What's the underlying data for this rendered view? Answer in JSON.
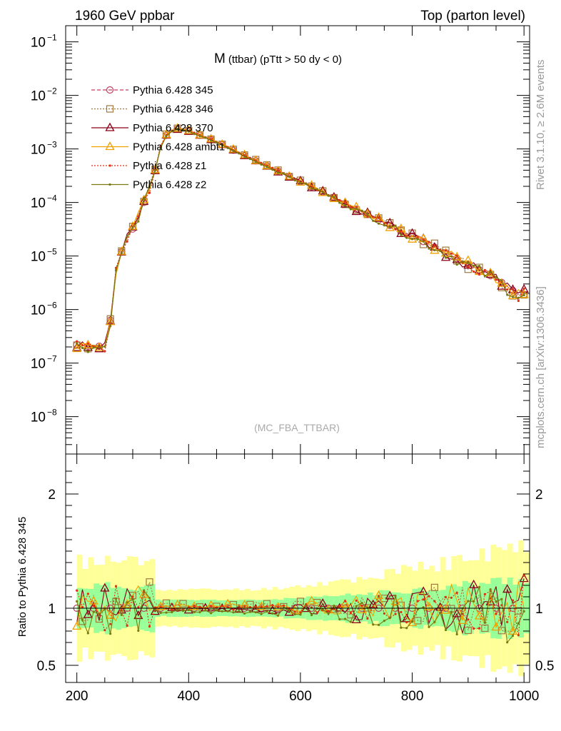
{
  "header": {
    "left_label": "1960 GeV ppbar",
    "right_label": "Top (parton level)",
    "side_top": "Rivet 3.1.10, ≥ 2.6M events",
    "side_bottom": "mcplots.cern.ch [arXiv:1306.3436]"
  },
  "chart_data": [
    {
      "type": "line",
      "title_main": "M",
      "title_sub": "(ttbar) (pTtt > 50 dy < 0)",
      "watermark": "(MC_FBA_TTBAR)",
      "yscale": "log",
      "xlim": [
        180,
        1010
      ],
      "ylim": [
        2e-09,
        0.2
      ],
      "y_ticks": [
        {
          "v": 1e-08,
          "base": "10",
          "exp": "−8"
        },
        {
          "v": 1e-07,
          "base": "10",
          "exp": "−7"
        },
        {
          "v": 1e-06,
          "base": "10",
          "exp": "−6"
        },
        {
          "v": 1e-05,
          "base": "10",
          "exp": "−5"
        },
        {
          "v": 0.0001,
          "base": "10",
          "exp": "−4"
        },
        {
          "v": 0.001,
          "base": "10",
          "exp": "−3"
        },
        {
          "v": 0.01,
          "base": "10",
          "exp": "−2"
        },
        {
          "v": 0.1,
          "base": "10",
          "exp": "−1"
        }
      ],
      "shape": {
        "points": [
          [
            200,
            2.2e-07
          ],
          [
            215,
            2.1e-07
          ],
          [
            230,
            2e-07
          ],
          [
            245,
            2.1e-07
          ],
          [
            255,
            2e-07
          ],
          [
            262,
            1e-06
          ],
          [
            270,
            5e-06
          ],
          [
            280,
            1.2e-05
          ],
          [
            290,
            2.2e-05
          ],
          [
            300,
            3.2e-05
          ],
          [
            310,
            5.5e-05
          ],
          [
            320,
            0.0001
          ],
          [
            330,
            0.00018
          ],
          [
            340,
            0.0004
          ],
          [
            350,
            0.0011
          ],
          [
            360,
            0.0018
          ],
          [
            370,
            0.0022
          ],
          [
            380,
            0.00235
          ],
          [
            390,
            0.0023
          ],
          [
            400,
            0.00215
          ],
          [
            420,
            0.0018
          ],
          [
            440,
            0.0015
          ],
          [
            460,
            0.0012
          ],
          [
            480,
            0.00095
          ],
          [
            500,
            0.00075
          ],
          [
            550,
            0.00043
          ],
          [
            600,
            0.000245
          ],
          [
            650,
            0.00014
          ],
          [
            700,
            7.5e-05
          ],
          [
            750,
            4.2e-05
          ],
          [
            800,
            2.35e-05
          ],
          [
            850,
            1.3e-05
          ],
          [
            900,
            7e-06
          ],
          [
            950,
            3.8e-06
          ],
          [
            990,
            1.9e-06
          ]
        ],
        "spacing": 10
      },
      "series": [
        {
          "name": "Pythia 6.428 345",
          "color": "#c04060",
          "marker": "circle",
          "dash": "5,3",
          "seed": 1,
          "offset": 0.0
        },
        {
          "name": "Pythia 6.428 346",
          "color": "#a07840",
          "marker": "square",
          "dash": "2,2",
          "seed": 2,
          "offset": 0.03
        },
        {
          "name": "Pythia 6.428 370",
          "color": "#8b0018",
          "marker": "triangle",
          "dash": "",
          "seed": 3,
          "offset": -0.01
        },
        {
          "name": "Pythia 6.428 ambt1",
          "color": "#f0a000",
          "marker": "triangle",
          "dash": "",
          "seed": 4,
          "offset": 0.02
        },
        {
          "name": "Pythia 6.428 z1",
          "color": "#e03010",
          "marker": "dot",
          "dash": "2,2",
          "seed": 5,
          "offset": 0.0
        },
        {
          "name": "Pythia 6.428 z2",
          "color": "#7a7a10",
          "marker": "dot",
          "dash": "",
          "seed": 6,
          "offset": -0.03
        }
      ]
    },
    {
      "type": "line",
      "ylabel": "Ratio to Pythia 6.428 345",
      "xlim": [
        180,
        1010
      ],
      "ylim": [
        0.35,
        2.35
      ],
      "reference": 1,
      "x_ticks": [
        200,
        400,
        600,
        800,
        1000
      ],
      "y_ticks": [
        0.5,
        1,
        2
      ],
      "band": {
        "green": 0.05,
        "yellow": 0.12
      }
    }
  ]
}
